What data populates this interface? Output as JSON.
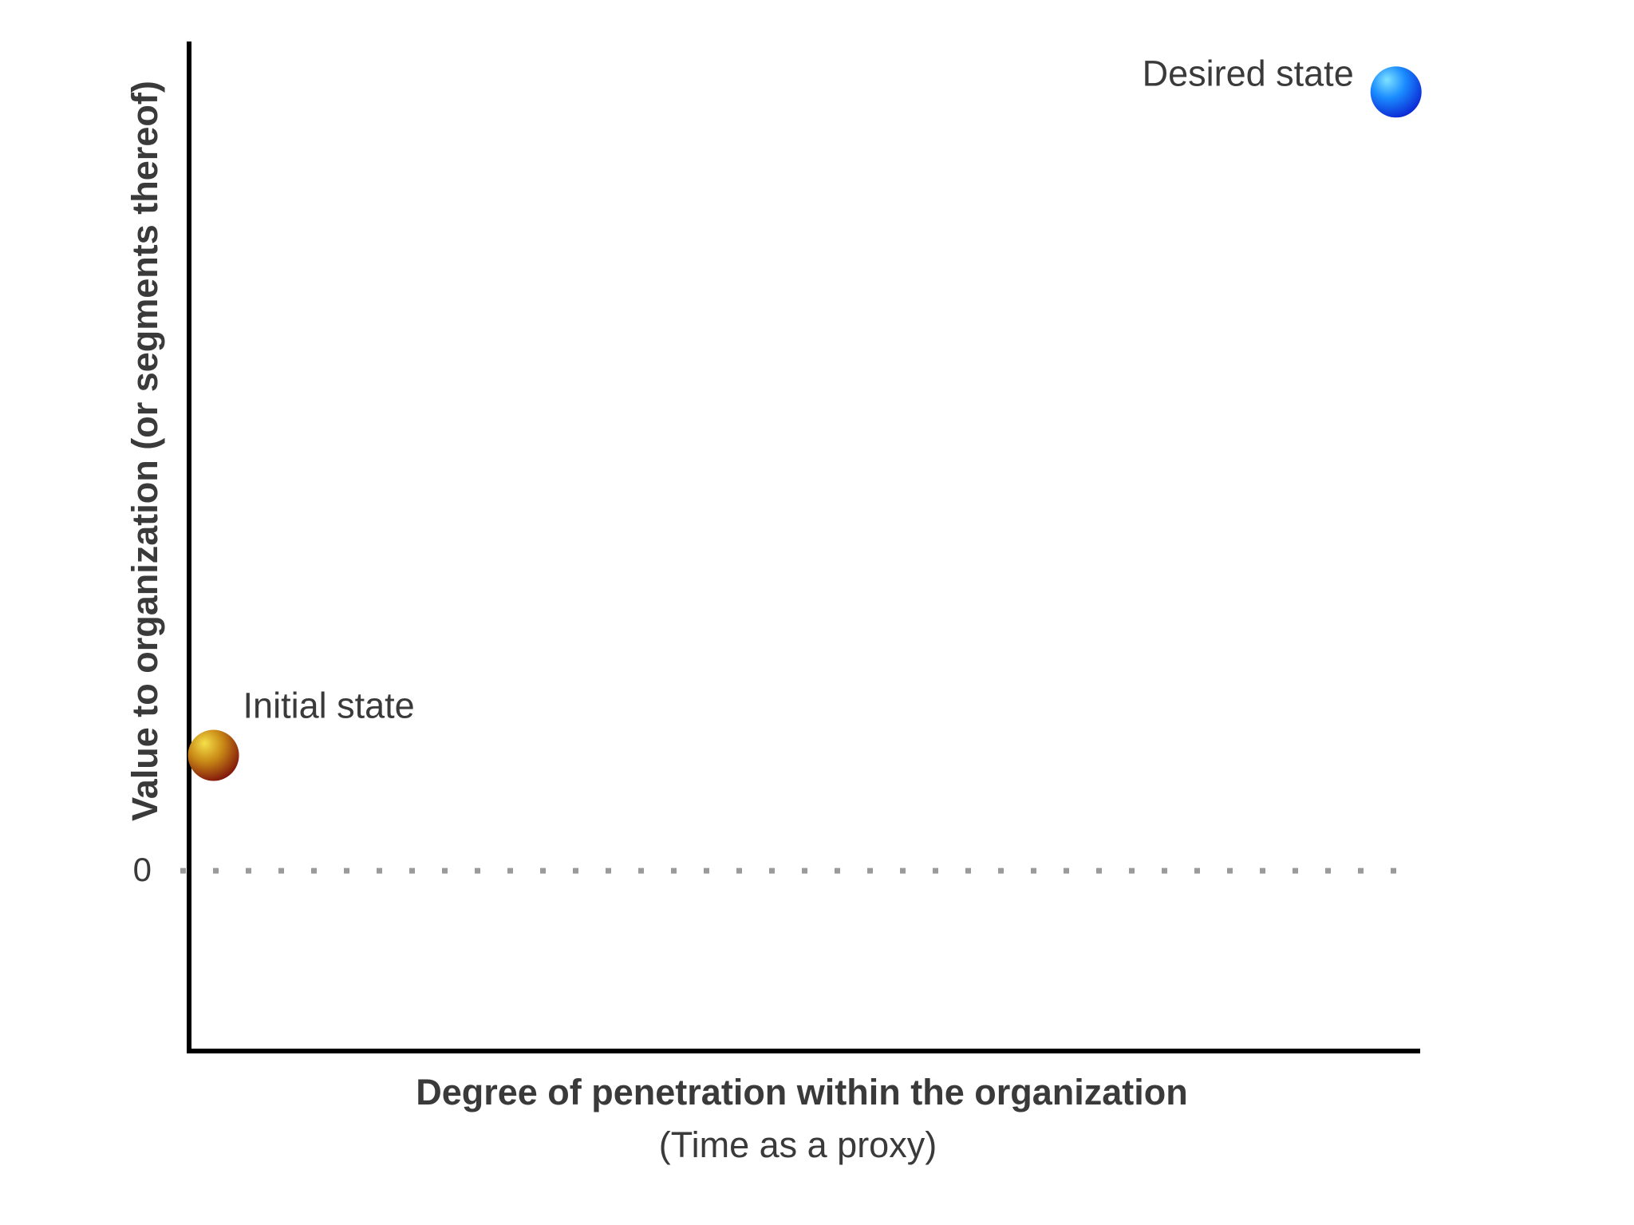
{
  "chart_data": {
    "type": "scatter",
    "title": "",
    "xlabel": "Degree of penetration within the organization",
    "xlabel_sub": "(Time as a proxy)",
    "ylabel": "Value to organization (or segments thereof)",
    "y_ticks": [
      {
        "value": 0,
        "label": "0"
      }
    ],
    "zero_line": "dotted",
    "grid": false,
    "legend": "none",
    "xlim": [
      0,
      100
    ],
    "ylim": [
      -25,
      115
    ],
    "points": [
      {
        "label": "Initial state",
        "x": 2,
        "y": 16,
        "color_highlight": "#f5e04a",
        "color_mid": "#c98a16",
        "color_shadow": "#7a0a0a"
      },
      {
        "label": "Desired state",
        "x": 99,
        "y": 108,
        "color_highlight": "#7fe3ff",
        "color_mid": "#1a8cff",
        "color_shadow": "#0a1fd0"
      }
    ]
  }
}
